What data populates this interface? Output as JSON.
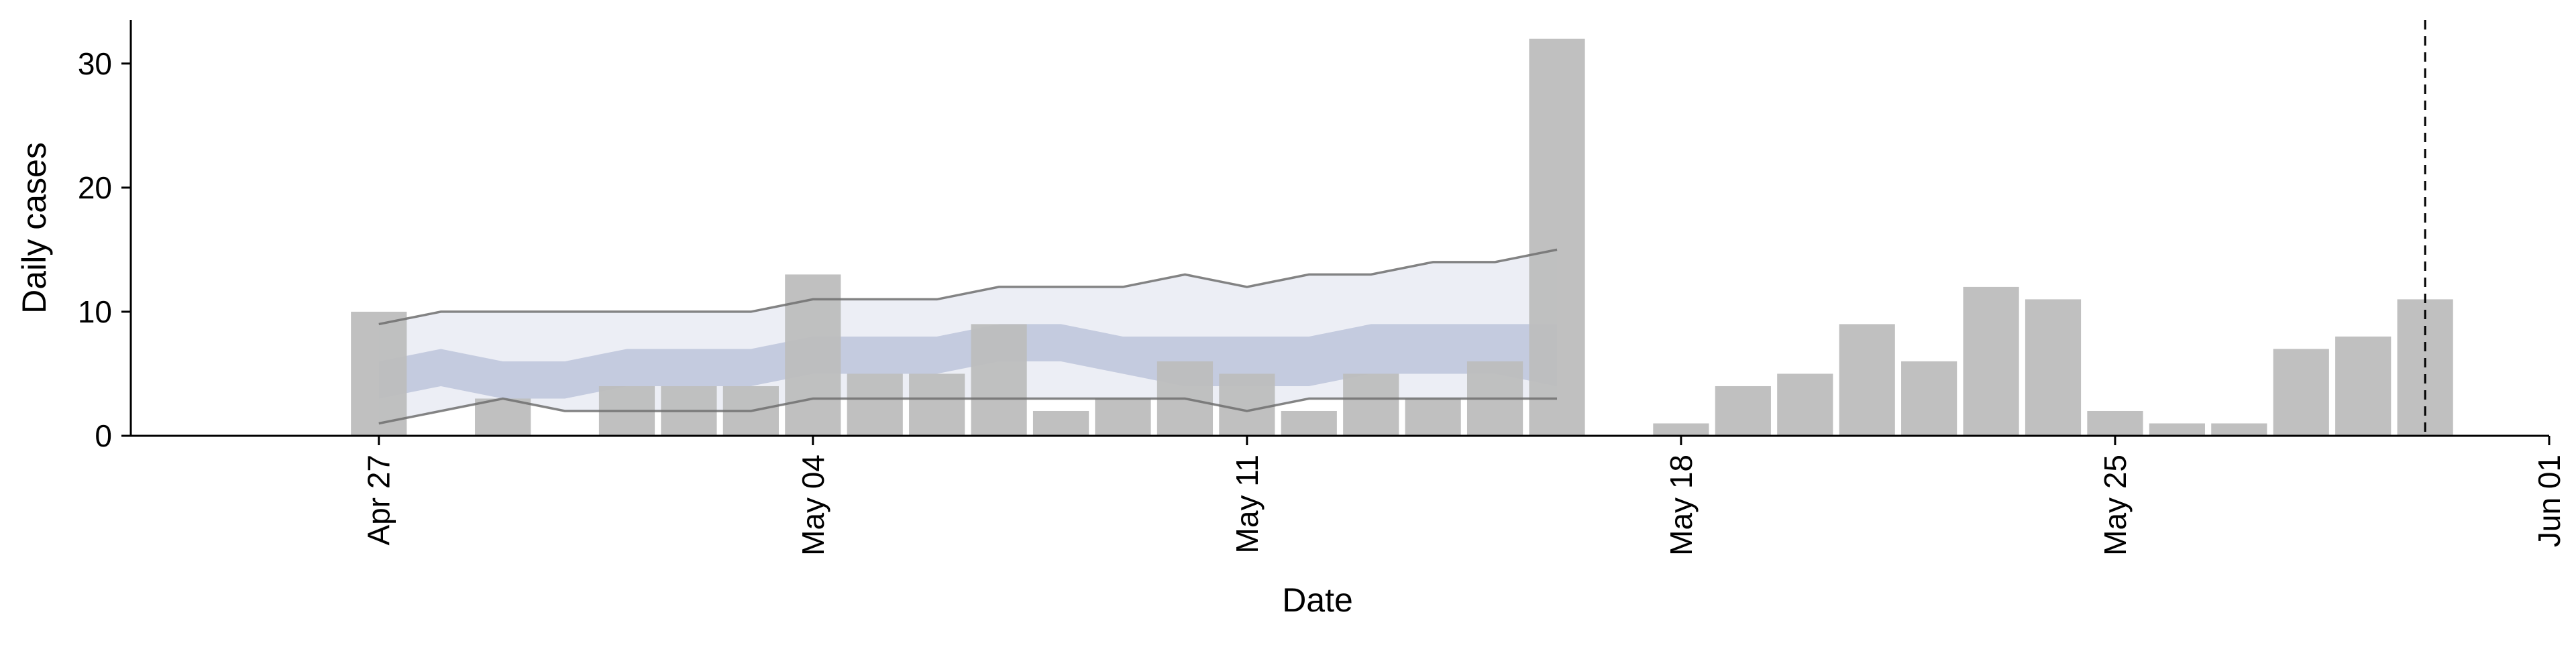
{
  "chart_data": {
    "type": "bar",
    "xlabel": "Date",
    "ylabel": "Daily cases",
    "ylim": [
      0,
      33.5
    ],
    "y_ticks": [
      0,
      10,
      20,
      30
    ],
    "x_ticks": [
      "Apr 27",
      "May 04",
      "May 11",
      "May 18",
      "May 25",
      "Jun 01"
    ],
    "x_tick_dates": [
      "2020-04-27",
      "2020-05-04",
      "2020-05-11",
      "2020-05-18",
      "2020-05-25",
      "2020-06-01"
    ],
    "x_range": [
      "2020-04-23",
      "2020-06-01"
    ],
    "grid": false,
    "legend": "none",
    "colors": {
      "bar": "#bdbdbd",
      "band_outer": "#dfe3ee",
      "band_inner": "#b4bcd6",
      "band_line": "#6e6e6e",
      "vline": "#000000",
      "axis": "#000000"
    },
    "bars": [
      {
        "date": "2020-04-27",
        "value": 10
      },
      {
        "date": "2020-04-28",
        "value": 0
      },
      {
        "date": "2020-04-29",
        "value": 3
      },
      {
        "date": "2020-04-30",
        "value": 0
      },
      {
        "date": "2020-05-01",
        "value": 4
      },
      {
        "date": "2020-05-02",
        "value": 4
      },
      {
        "date": "2020-05-03",
        "value": 4
      },
      {
        "date": "2020-05-04",
        "value": 13
      },
      {
        "date": "2020-05-05",
        "value": 5
      },
      {
        "date": "2020-05-06",
        "value": 5
      },
      {
        "date": "2020-05-07",
        "value": 9
      },
      {
        "date": "2020-05-08",
        "value": 2
      },
      {
        "date": "2020-05-09",
        "value": 3
      },
      {
        "date": "2020-05-10",
        "value": 6
      },
      {
        "date": "2020-05-11",
        "value": 5
      },
      {
        "date": "2020-05-12",
        "value": 2
      },
      {
        "date": "2020-05-13",
        "value": 5
      },
      {
        "date": "2020-05-14",
        "value": 3
      },
      {
        "date": "2020-05-15",
        "value": 6
      },
      {
        "date": "2020-05-16",
        "value": 32
      },
      {
        "date": "2020-05-18",
        "value": 1
      },
      {
        "date": "2020-05-19",
        "value": 4
      },
      {
        "date": "2020-05-20",
        "value": 5
      },
      {
        "date": "2020-05-21",
        "value": 9
      },
      {
        "date": "2020-05-22",
        "value": 6
      },
      {
        "date": "2020-05-23",
        "value": 12
      },
      {
        "date": "2020-05-24",
        "value": 11
      },
      {
        "date": "2020-05-25",
        "value": 2
      },
      {
        "date": "2020-05-26",
        "value": 1
      },
      {
        "date": "2020-05-27",
        "value": 1
      },
      {
        "date": "2020-05-28",
        "value": 7
      },
      {
        "date": "2020-05-29",
        "value": 8
      },
      {
        "date": "2020-05-30",
        "value": 11
      }
    ],
    "band": {
      "dates": [
        "2020-04-27",
        "2020-04-28",
        "2020-04-29",
        "2020-04-30",
        "2020-05-01",
        "2020-05-02",
        "2020-05-03",
        "2020-05-04",
        "2020-05-05",
        "2020-05-06",
        "2020-05-07",
        "2020-05-08",
        "2020-05-09",
        "2020-05-10",
        "2020-05-11",
        "2020-05-12",
        "2020-05-13",
        "2020-05-14",
        "2020-05-15",
        "2020-05-16"
      ],
      "outer_upper": [
        9,
        10,
        10,
        10,
        10,
        10,
        10,
        11,
        11,
        11,
        12,
        12,
        12,
        13,
        12,
        13,
        13,
        14,
        14,
        15
      ],
      "outer_lower": [
        1,
        2,
        3,
        2,
        2,
        2,
        2,
        3,
        3,
        3,
        3,
        3,
        3,
        3,
        2,
        3,
        3,
        3,
        3,
        3
      ],
      "inner_upper": [
        6,
        7,
        6,
        6,
        7,
        7,
        7,
        8,
        8,
        8,
        9,
        9,
        8,
        8,
        8,
        8,
        9,
        9,
        9,
        9
      ],
      "inner_lower": [
        3,
        4,
        3,
        3,
        4,
        4,
        4,
        5,
        5,
        5,
        6,
        6,
        5,
        4,
        4,
        4,
        5,
        5,
        5,
        4
      ]
    },
    "vline_date": "2020-05-30"
  }
}
